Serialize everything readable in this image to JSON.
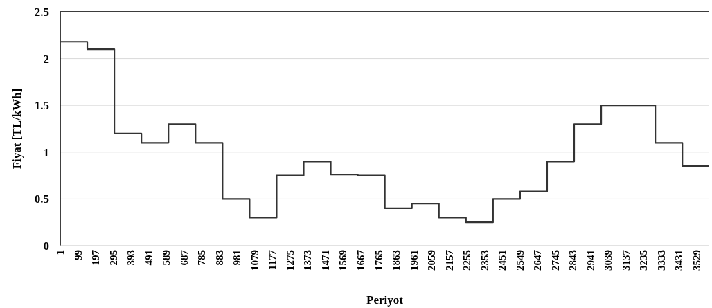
{
  "chart_data": {
    "type": "step",
    "xlabel": "Periyot",
    "ylabel": "Fiyat [TL/kWh]",
    "x": [
      1,
      151,
      301,
      451,
      601,
      751,
      901,
      1051,
      1201,
      1351,
      1501,
      1651,
      1801,
      1951,
      2101,
      2251,
      2401,
      2551,
      2701,
      2851,
      3001,
      3151,
      3301,
      3451,
      3600
    ],
    "series": [
      {
        "color": "#333333",
        "values": [
          2.18,
          2.1,
          1.2,
          1.1,
          1.3,
          1.1,
          0.5,
          0.3,
          0.75,
          0.9,
          0.76,
          0.75,
          0.4,
          0.45,
          0.3,
          0.25,
          0.5,
          0.58,
          0.9,
          1.3,
          1.5,
          1.5,
          1.1,
          0.85,
          0.85
        ]
      }
    ],
    "xlim": [
      1,
      3600
    ],
    "xticks": [
      1,
      99,
      197,
      295,
      393,
      491,
      589,
      687,
      785,
      883,
      981,
      1079,
      1177,
      1275,
      1373,
      1471,
      1569,
      1667,
      1765,
      1863,
      1961,
      2059,
      2157,
      2255,
      2353,
      2451,
      2549,
      2647,
      2745,
      2843,
      2941,
      3039,
      3137,
      3235,
      3333,
      3431,
      3529
    ],
    "ylim": [
      0,
      2.5
    ],
    "yticks": [
      0,
      0.5,
      1,
      1.5,
      2,
      2.5
    ],
    "grid": "y",
    "line_style": "solid"
  }
}
